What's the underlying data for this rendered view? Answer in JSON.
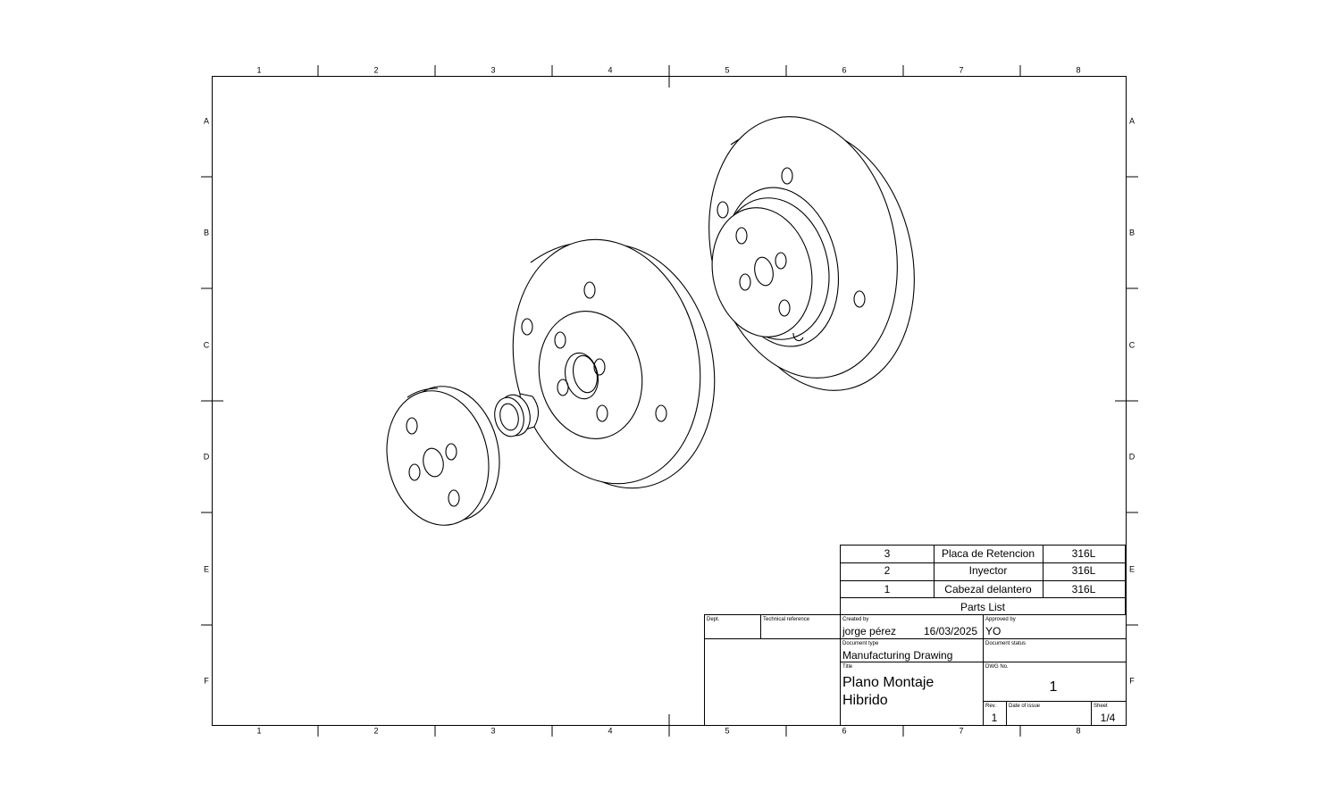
{
  "zones": {
    "columns": [
      "1",
      "2",
      "3",
      "4",
      "5",
      "6",
      "7",
      "8"
    ],
    "rows": [
      "A",
      "B",
      "C",
      "D",
      "E",
      "F"
    ]
  },
  "parts_list": {
    "heading": "Parts List",
    "rows": [
      {
        "item": "3",
        "name": "Placa de Retencion",
        "material": "316L"
      },
      {
        "item": "2",
        "name": "Inyector",
        "material": "316L"
      },
      {
        "item": "1",
        "name": "Cabezal delantero",
        "material": "316L"
      }
    ]
  },
  "title_block": {
    "dept_label": "Dept.",
    "dept_value": "",
    "tech_ref_label": "Technical reference",
    "tech_ref_value": "",
    "created_by_label": "Created by",
    "created_by": "jorge pérez",
    "created_date": "16/03/2025",
    "approved_by_label": "Approved by",
    "approved_by": "YO",
    "doc_type_label": "Document type",
    "doc_type": "Manufacturing Drawing",
    "doc_status_label": "Document status",
    "doc_status": "",
    "title_label": "Title",
    "title_line1": "Plano Montaje",
    "title_line2": "Hibrido",
    "dwg_no_label": "DWG No.",
    "dwg_no": "1",
    "rev_label": "Rev.",
    "rev": "1",
    "date_issue_label": "Date of issue",
    "date_issue": "",
    "sheet_label": "Sheet",
    "sheet": "1/4"
  }
}
